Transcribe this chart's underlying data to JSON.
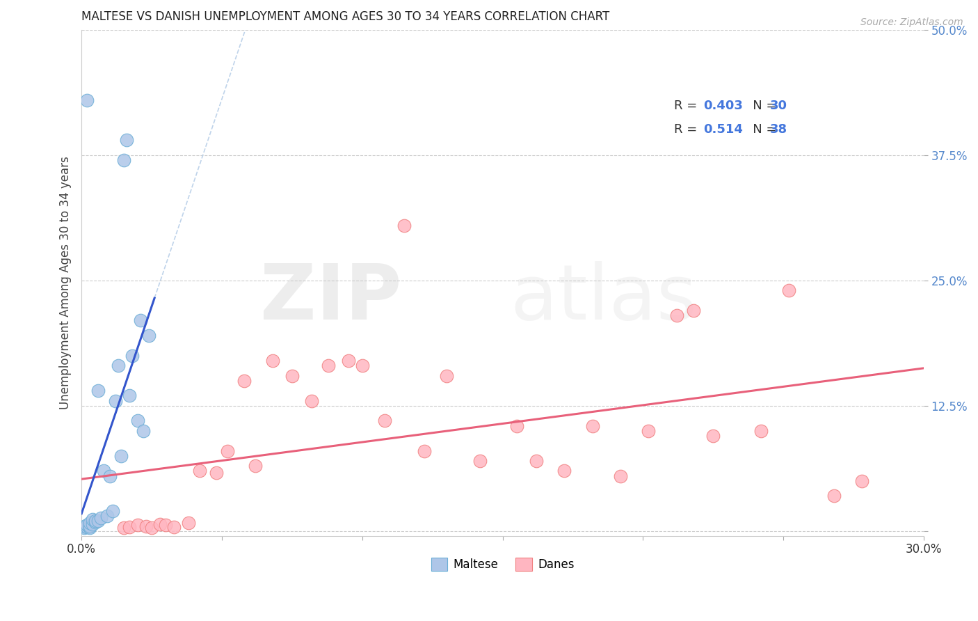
{
  "title": "MALTESE VS DANISH UNEMPLOYMENT AMONG AGES 30 TO 34 YEARS CORRELATION CHART",
  "source": "Source: ZipAtlas.com",
  "ylabel": "Unemployment Among Ages 30 to 34 years",
  "xlim": [
    0.0,
    0.3
  ],
  "ylim": [
    -0.005,
    0.5
  ],
  "xticks": [
    0.0,
    0.05,
    0.1,
    0.15,
    0.2,
    0.25,
    0.3
  ],
  "yticks": [
    0.0,
    0.125,
    0.25,
    0.375,
    0.5
  ],
  "maltese_color": "#aec6e8",
  "maltese_edge": "#6baed6",
  "danes_color": "#ffb6c1",
  "danes_edge": "#f08080",
  "maltese_line_color": "#3355cc",
  "danes_line_color": "#e8607a",
  "maltese_dash_color": "#b8cfe8",
  "tick_color": "#5588cc",
  "watermark_zip": "ZIP",
  "watermark_atlas": "atlas",
  "maltese_x": [
    0.001,
    0.001,
    0.002,
    0.002,
    0.002,
    0.003,
    0.003,
    0.003,
    0.004,
    0.004,
    0.005,
    0.005,
    0.006,
    0.006,
    0.007,
    0.008,
    0.009,
    0.01,
    0.011,
    0.012,
    0.013,
    0.014,
    0.015,
    0.016,
    0.017,
    0.018,
    0.02,
    0.021,
    0.022,
    0.024
  ],
  "maltese_y": [
    0.003,
    0.005,
    0.004,
    0.006,
    0.43,
    0.003,
    0.005,
    0.008,
    0.007,
    0.012,
    0.009,
    0.01,
    0.01,
    0.14,
    0.013,
    0.06,
    0.015,
    0.055,
    0.02,
    0.13,
    0.165,
    0.075,
    0.37,
    0.39,
    0.135,
    0.175,
    0.11,
    0.21,
    0.1,
    0.195
  ],
  "danes_x": [
    0.015,
    0.017,
    0.02,
    0.023,
    0.025,
    0.028,
    0.03,
    0.033,
    0.038,
    0.042,
    0.048,
    0.052,
    0.058,
    0.062,
    0.068,
    0.075,
    0.082,
    0.088,
    0.095,
    0.1,
    0.108,
    0.115,
    0.122,
    0.13,
    0.142,
    0.155,
    0.162,
    0.172,
    0.182,
    0.192,
    0.202,
    0.212,
    0.218,
    0.225,
    0.242,
    0.252,
    0.268,
    0.278
  ],
  "danes_y": [
    0.003,
    0.004,
    0.006,
    0.005,
    0.003,
    0.007,
    0.006,
    0.004,
    0.008,
    0.06,
    0.058,
    0.08,
    0.15,
    0.065,
    0.17,
    0.155,
    0.13,
    0.165,
    0.17,
    0.165,
    0.11,
    0.305,
    0.08,
    0.155,
    0.07,
    0.105,
    0.07,
    0.06,
    0.105,
    0.055,
    0.1,
    0.215,
    0.22,
    0.095,
    0.1,
    0.24,
    0.035,
    0.05
  ],
  "legend_r1_text": "R = ",
  "legend_r1_val": "0.403",
  "legend_n1_text": "  N = ",
  "legend_n1_val": "30",
  "legend_r2_text": "R =  ",
  "legend_r2_val": "0.514",
  "legend_n2_text": "  N = ",
  "legend_n2_val": "38",
  "background_color": "#ffffff",
  "grid_color": "#cccccc"
}
